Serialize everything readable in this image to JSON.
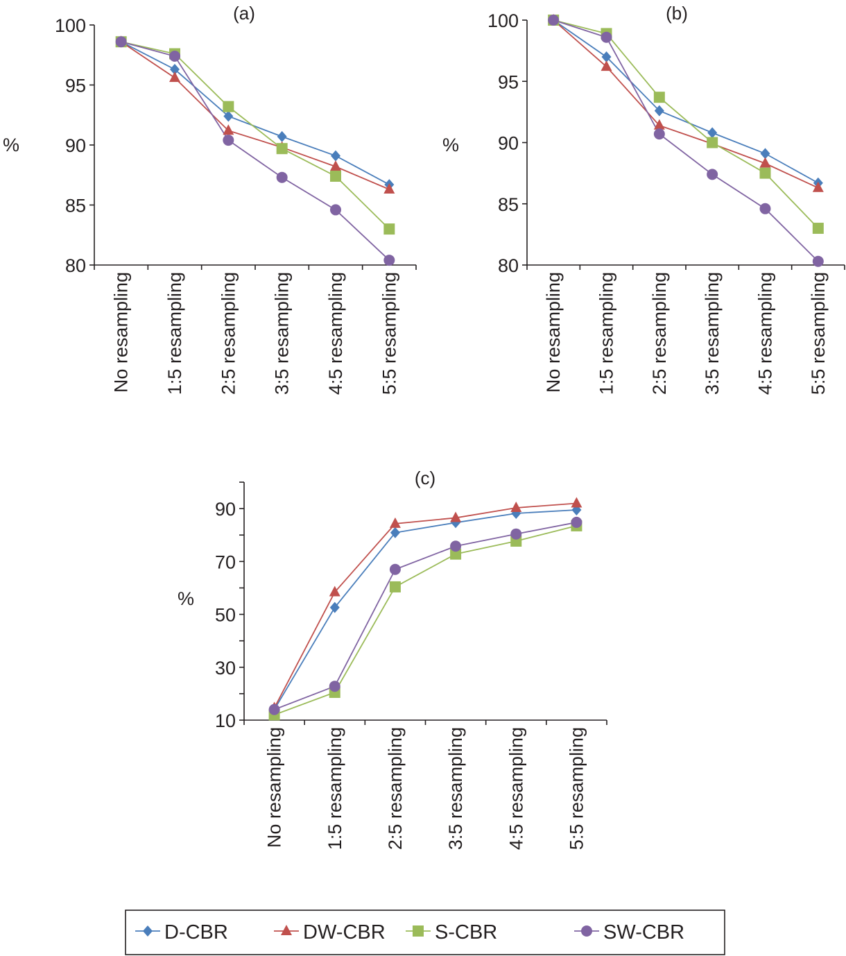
{
  "chart_data": [
    {
      "type": "line",
      "title": "(a)",
      "xlabel": "",
      "ylabel": "%",
      "ylim": [
        80,
        100
      ],
      "yticks": [
        80,
        85,
        90,
        95,
        100
      ],
      "grid": false,
      "categories": [
        "No resampling",
        "1:5 resampling",
        "2:5 resampling",
        "3:5 resampling",
        "4:5 resampling",
        "5:5 resampling"
      ],
      "series": [
        {
          "name": "D-CBR",
          "values": [
            98.6,
            96.3,
            92.4,
            90.7,
            89.1,
            86.7
          ]
        },
        {
          "name": "DW-CBR",
          "values": [
            98.6,
            95.6,
            91.2,
            89.8,
            88.2,
            86.3
          ]
        },
        {
          "name": "S-CBR",
          "values": [
            98.6,
            97.6,
            93.2,
            89.7,
            87.4,
            83.0
          ]
        },
        {
          "name": "SW-CBR",
          "values": [
            98.6,
            97.4,
            90.4,
            87.3,
            84.6,
            80.4
          ]
        }
      ]
    },
    {
      "type": "line",
      "title": "(b)",
      "xlabel": "",
      "ylabel": "%",
      "ylim": [
        80,
        100
      ],
      "yticks": [
        80,
        85,
        90,
        95,
        100
      ],
      "grid": false,
      "categories": [
        "No resampling",
        "1:5 resampling",
        "2:5 resampling",
        "3:5 resampling",
        "4:5 resampling",
        "5:5 resampling"
      ],
      "series": [
        {
          "name": "D-CBR",
          "values": [
            100.0,
            97.0,
            92.6,
            90.8,
            89.1,
            86.7
          ]
        },
        {
          "name": "DW-CBR",
          "values": [
            100.0,
            96.2,
            91.4,
            89.9,
            88.3,
            86.3
          ]
        },
        {
          "name": "S-CBR",
          "values": [
            100.0,
            98.9,
            93.7,
            90.0,
            87.5,
            83.0
          ]
        },
        {
          "name": "SW-CBR",
          "values": [
            100.0,
            98.6,
            90.7,
            87.4,
            84.6,
            80.3
          ]
        }
      ]
    },
    {
      "type": "line",
      "title": "(c)",
      "xlabel": "",
      "ylabel": "%",
      "ylim": [
        10,
        100
      ],
      "yticks": [
        10,
        30,
        50,
        70,
        90
      ],
      "minor_yticks": [
        20,
        40,
        60,
        80,
        100
      ],
      "grid": false,
      "categories": [
        "No resampling",
        "1:5 resampling",
        "2:5 resampling",
        "3:5 resampling",
        "4:5 resampling",
        "5:5 resampling"
      ],
      "series": [
        {
          "name": "D-CBR",
          "values": [
            14.0,
            52.6,
            80.9,
            84.7,
            88.2,
            89.5
          ]
        },
        {
          "name": "DW-CBR",
          "values": [
            14.6,
            58.4,
            84.3,
            86.5,
            90.3,
            92.0
          ]
        },
        {
          "name": "S-CBR",
          "values": [
            12.0,
            20.5,
            60.4,
            72.8,
            77.7,
            83.5
          ]
        },
        {
          "name": "SW-CBR",
          "values": [
            14.0,
            22.8,
            67.0,
            75.8,
            80.4,
            84.8
          ]
        }
      ]
    }
  ],
  "legend": {
    "placement": "bottom-center",
    "items": [
      {
        "name": "D-CBR",
        "color": "#4a7ebb",
        "marker": "diamond"
      },
      {
        "name": "DW-CBR",
        "color": "#c0504d",
        "marker": "triangle"
      },
      {
        "name": "S-CBR",
        "color": "#9bbb59",
        "marker": "square"
      },
      {
        "name": "SW-CBR",
        "color": "#8064a2",
        "marker": "circle"
      }
    ]
  }
}
